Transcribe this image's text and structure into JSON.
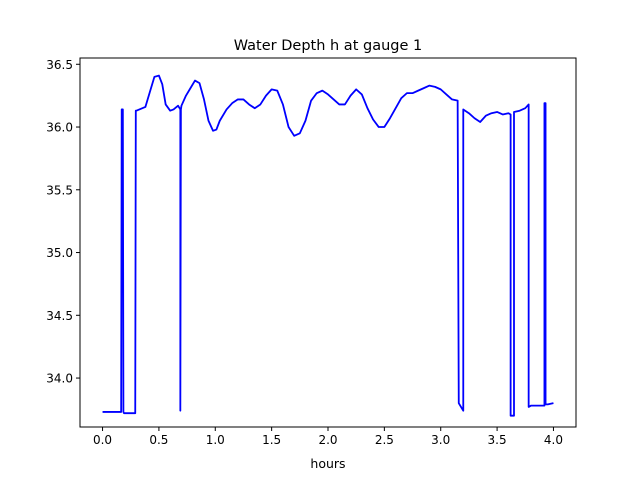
{
  "chart_data": {
    "type": "line",
    "title": "Water Depth h at gauge 1",
    "xlabel": "hours",
    "ylabel": "",
    "xlim": [
      -0.2,
      4.2
    ],
    "ylim": [
      33.61,
      36.55
    ],
    "xticks": [
      0.0,
      0.5,
      1.0,
      1.5,
      2.0,
      2.5,
      3.0,
      3.5,
      4.0
    ],
    "xtick_labels": [
      "0.0",
      "0.5",
      "1.0",
      "1.5",
      "2.0",
      "2.5",
      "3.0",
      "3.5",
      "4.0"
    ],
    "yticks": [
      34.0,
      34.5,
      35.0,
      35.5,
      36.0,
      36.5
    ],
    "ytick_labels": [
      "34.0",
      "34.5",
      "35.0",
      "35.5",
      "36.0",
      "36.5"
    ],
    "grid": false,
    "series": [
      {
        "color": "#0000ff",
        "x": [
          0.0,
          0.1,
          0.165,
          0.17,
          0.175,
          0.18,
          0.185,
          0.19,
          0.29,
          0.295,
          0.3,
          0.38,
          0.42,
          0.46,
          0.5,
          0.53,
          0.56,
          0.6,
          0.63,
          0.67,
          0.69,
          0.69,
          0.695,
          0.7,
          0.74,
          0.78,
          0.82,
          0.86,
          0.9,
          0.94,
          0.98,
          1.01,
          1.04,
          1.1,
          1.15,
          1.2,
          1.25,
          1.3,
          1.35,
          1.4,
          1.45,
          1.5,
          1.55,
          1.6,
          1.65,
          1.7,
          1.75,
          1.8,
          1.85,
          1.9,
          1.95,
          2.0,
          2.05,
          2.1,
          2.15,
          2.2,
          2.25,
          2.3,
          2.35,
          2.4,
          2.45,
          2.5,
          2.55,
          2.6,
          2.65,
          2.7,
          2.75,
          2.8,
          2.85,
          2.9,
          2.95,
          3.0,
          3.05,
          3.1,
          3.15,
          3.16,
          3.2,
          3.2,
          3.25,
          3.3,
          3.35,
          3.4,
          3.45,
          3.5,
          3.55,
          3.6,
          3.62,
          3.62,
          3.65,
          3.65,
          3.7,
          3.75,
          3.78,
          3.78,
          3.8,
          3.85,
          3.9,
          3.92,
          3.92,
          3.93,
          3.93,
          3.95,
          4.0
        ],
        "y": [
          33.73,
          33.73,
          33.73,
          36.14,
          36.14,
          36.14,
          33.73,
          33.72,
          33.72,
          36.13,
          36.13,
          36.16,
          36.28,
          36.4,
          36.41,
          36.34,
          36.18,
          36.13,
          36.14,
          36.17,
          36.14,
          33.74,
          36.14,
          36.17,
          36.25,
          36.31,
          36.37,
          36.35,
          36.22,
          36.05,
          35.97,
          35.98,
          36.05,
          36.14,
          36.19,
          36.22,
          36.22,
          36.18,
          36.15,
          36.18,
          36.25,
          36.3,
          36.29,
          36.18,
          36.0,
          35.93,
          35.95,
          36.05,
          36.21,
          36.27,
          36.29,
          36.26,
          36.22,
          36.18,
          36.18,
          36.25,
          36.3,
          36.26,
          36.15,
          36.06,
          36.0,
          36.0,
          36.07,
          36.15,
          36.23,
          36.27,
          36.27,
          36.29,
          36.31,
          36.33,
          36.32,
          36.3,
          36.26,
          36.22,
          36.21,
          33.8,
          33.74,
          36.14,
          36.11,
          36.07,
          36.04,
          36.09,
          36.11,
          36.12,
          36.1,
          36.11,
          36.1,
          33.7,
          33.7,
          36.12,
          36.13,
          36.15,
          36.18,
          33.77,
          33.78,
          33.78,
          33.78,
          33.78,
          36.19,
          36.19,
          33.79,
          33.79,
          33.8
        ]
      }
    ]
  }
}
